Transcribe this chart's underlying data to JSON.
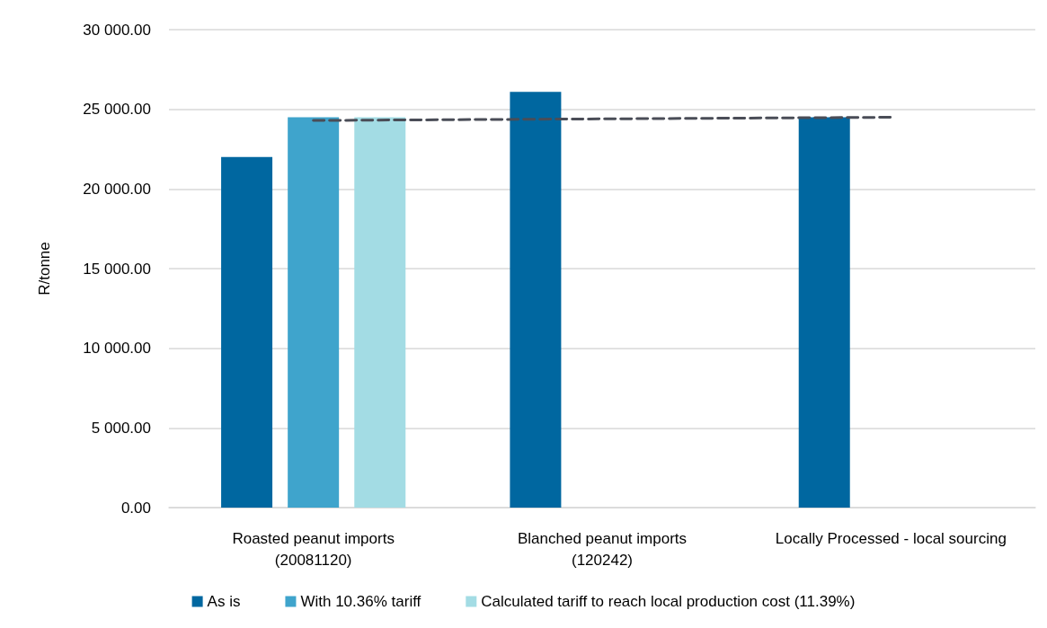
{
  "chart_data": {
    "type": "bar",
    "ylabel": "R/tonne",
    "categories": [
      "Roasted peanut imports\n(20081120)",
      "Blanched peanut imports\n(120242)",
      "Locally Processed - local sourcing"
    ],
    "series": [
      {
        "name": "As is",
        "color": "#0067a0",
        "values": [
          22000,
          26100,
          24500
        ]
      },
      {
        "name": "With 10.36% tariff",
        "color": "#3fa4cc",
        "values": [
          24500,
          null,
          null
        ]
      },
      {
        "name": "Calculated tariff to reach local production cost (11.39%)",
        "color": "#a3dce4",
        "values": [
          24500,
          null,
          null
        ]
      },
      {
        "type": "line",
        "color": "#4a4d57",
        "line_style": "dashed",
        "marker": "none",
        "values": [
          24300,
          24400,
          24500
        ]
      }
    ],
    "ylim": [
      0,
      30000
    ],
    "yticks": [
      {
        "value": 0,
        "label": "0.00"
      },
      {
        "value": 5000,
        "label": "5 000.00"
      },
      {
        "value": 10000,
        "label": "10 000.00"
      },
      {
        "value": 15000,
        "label": "15 000.00"
      },
      {
        "value": 20000,
        "label": "20 000.00"
      },
      {
        "value": 25000,
        "label": "25 000.00"
      },
      {
        "value": 30000,
        "label": "30 000.00"
      }
    ],
    "grid": "y",
    "legend": "bottom"
  }
}
